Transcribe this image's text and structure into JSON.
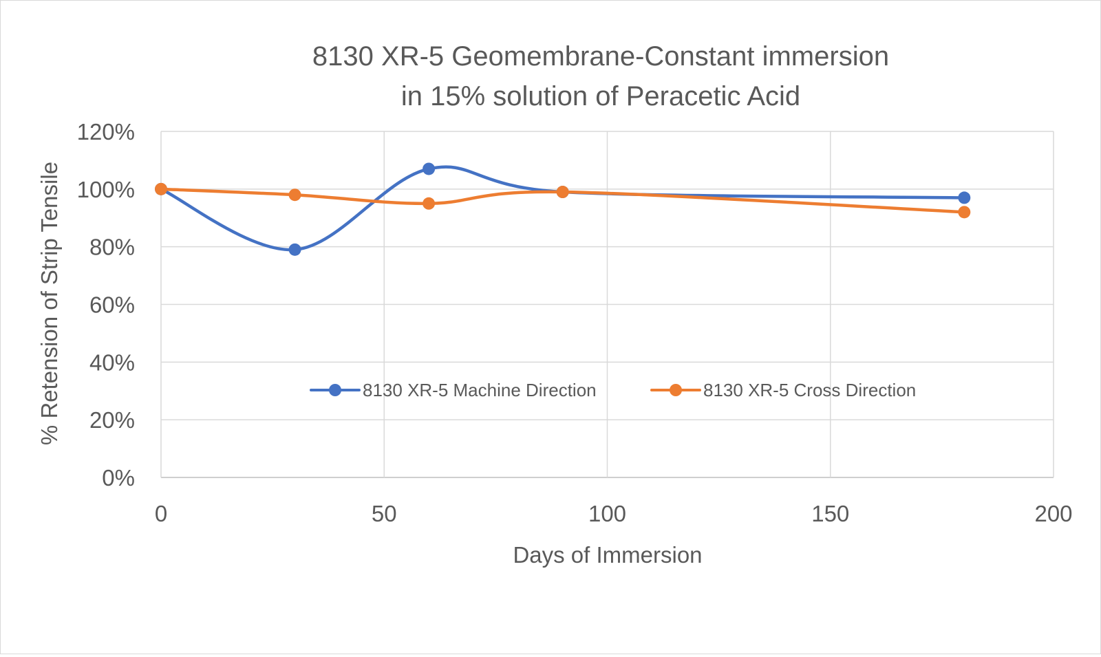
{
  "chart_data": {
    "type": "scatter",
    "subtype": "smoothed-lines-with-markers",
    "title_lines": [
      "8130 XR-5 Geomembrane-Constant immersion",
      "in 15% solution of Peracetic Acid"
    ],
    "xlabel": "Days of Immersion",
    "ylabel": "% Retension of Strip Tensile",
    "xlim": [
      0,
      200
    ],
    "ylim": [
      0,
      120
    ],
    "x_ticks": [
      0,
      50,
      100,
      150,
      200
    ],
    "y_ticks": [
      0,
      20,
      40,
      60,
      80,
      100,
      120
    ],
    "y_tick_labels": [
      "0%",
      "20%",
      "40%",
      "60%",
      "80%",
      "100%",
      "120%"
    ],
    "x_tick_labels": [
      "0",
      "50",
      "100",
      "150",
      "200"
    ],
    "grid": true,
    "legend_position": "inside-bottom",
    "series": [
      {
        "name": "8130 XR-5 Machine Direction",
        "color": "#4472c4",
        "x": [
          0,
          30,
          60,
          90,
          180
        ],
        "y": [
          100,
          79,
          107,
          99,
          97
        ]
      },
      {
        "name": "8130 XR-5 Cross Direction",
        "color": "#ed7d31",
        "x": [
          0,
          30,
          60,
          90,
          180
        ],
        "y": [
          100,
          98,
          95,
          99,
          92
        ]
      }
    ]
  }
}
